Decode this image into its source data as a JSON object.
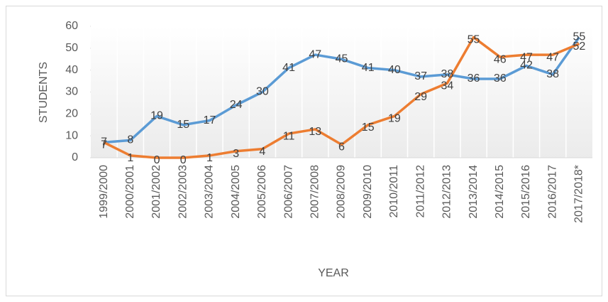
{
  "chart_data": {
    "type": "line",
    "xlabel": "YEAR",
    "ylabel": "STUDENTS",
    "categories": [
      "1999/2000",
      "2000/2001",
      "2001/2002",
      "2002/2003",
      "2003/2004",
      "2004/2005",
      "2005/2006",
      "2006/2007",
      "2007/2008",
      "2008/2009",
      "2009/2010",
      "2010/2011",
      "2011/2012",
      "2012/2013",
      "2013/2014",
      "2014/2015",
      "2015/2016",
      "2016/2017",
      "2017/2018*"
    ],
    "series": [
      {
        "color": "#5b9bd5",
        "values": [
          7,
          8,
          19,
          15,
          17,
          24,
          30,
          41,
          47,
          45,
          41,
          40,
          37,
          38,
          36,
          36,
          42,
          38,
          55
        ]
      },
      {
        "color": "#ed7d31",
        "values": [
          7,
          1,
          0,
          0,
          1,
          3,
          4,
          11,
          13,
          6,
          15,
          19,
          29,
          34,
          55,
          46,
          47,
          47,
          52
        ]
      }
    ],
    "ylim": [
      0,
      60
    ],
    "yticks": [
      0,
      10,
      20,
      30,
      40,
      50,
      60
    ]
  }
}
